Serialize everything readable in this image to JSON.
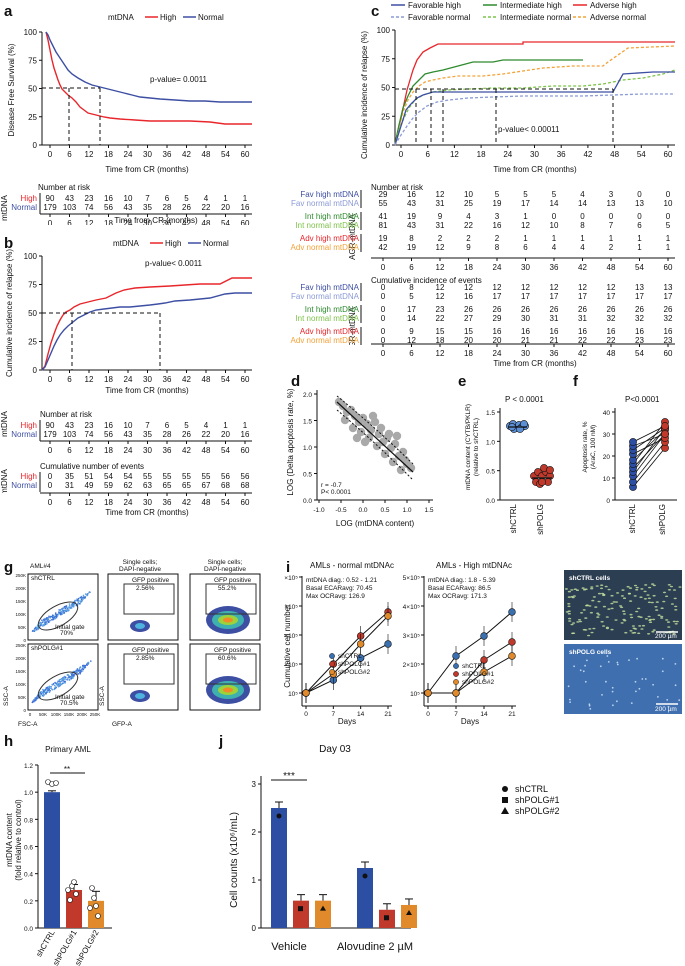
{
  "panels": {
    "a": {
      "label": "a",
      "legend_title": "mtDNA",
      "series": [
        "High",
        "Normal"
      ],
      "colors": {
        "High": "#e8262b",
        "Normal": "#3d4fa3"
      },
      "ylabel": "Disease Free Survival (%)",
      "xlabel": "Time from CR (months)",
      "pvalue": "p-value= 0.0011",
      "yticks": [
        "0",
        "25",
        "50",
        "75",
        "100"
      ],
      "xticks": [
        "0",
        "6",
        "12",
        "18",
        "24",
        "30",
        "36",
        "42",
        "48",
        "54",
        "60"
      ],
      "risk_title": "Number at risk",
      "risk_group": "mtDNA",
      "risk_rows": [
        {
          "name": "High",
          "values": [
            "90",
            "43",
            "23",
            "16",
            "10",
            "7",
            "6",
            "5",
            "4",
            "1",
            "1"
          ]
        },
        {
          "name": "Normal",
          "values": [
            "179",
            "103",
            "74",
            "56",
            "43",
            "35",
            "28",
            "26",
            "22",
            "20",
            "16"
          ]
        }
      ]
    },
    "b": {
      "label": "b",
      "legend_title": "mtDNA",
      "series": [
        "High",
        "Normal"
      ],
      "ylabel": "Cumulative incidence of relapse (%)",
      "xlabel": "Time from CR (months)",
      "pvalue": "p-value< 0.0011",
      "yticks": [
        "0",
        "25",
        "50",
        "75",
        "100"
      ],
      "xticks": [
        "0",
        "6",
        "12",
        "18",
        "24",
        "30",
        "36",
        "42",
        "48",
        "54",
        "60"
      ],
      "risk_title": "Number at risk",
      "risk_group": "mtDNA",
      "risk_rows": [
        {
          "name": "High",
          "values": [
            "90",
            "43",
            "23",
            "16",
            "10",
            "7",
            "6",
            "5",
            "4",
            "1",
            "1"
          ]
        },
        {
          "name": "Normal",
          "values": [
            "179",
            "103",
            "74",
            "56",
            "43",
            "35",
            "28",
            "26",
            "22",
            "20",
            "16"
          ]
        }
      ],
      "events_title": "Cumulative number of events",
      "event_rows": [
        {
          "name": "High",
          "values": [
            "0",
            "35",
            "51",
            "54",
            "54",
            "55",
            "55",
            "55",
            "55",
            "56",
            "56"
          ]
        },
        {
          "name": "Normal",
          "values": [
            "0",
            "31",
            "49",
            "59",
            "62",
            "63",
            "65",
            "65",
            "67",
            "68",
            "68"
          ]
        }
      ]
    },
    "c": {
      "label": "c",
      "legend": [
        {
          "name": "Favorable high",
          "color": "#3d4fa3",
          "dash": false
        },
        {
          "name": "Intermediate high",
          "color": "#2e8b2e",
          "dash": false
        },
        {
          "name": "Adverse high",
          "color": "#e8262b",
          "dash": false
        },
        {
          "name": "Favorable normal",
          "color": "#8c9bd6",
          "dash": true
        },
        {
          "name": "Intermediate normal",
          "color": "#7ec34a",
          "dash": true
        },
        {
          "name": "Adverse normal",
          "color": "#f3a33a",
          "dash": true
        }
      ],
      "ylabel": "Cumulative incidence of relapse (%)",
      "xlabel": "Time from CR (months)",
      "pvalue": "p-value< 0.00011",
      "yticks": [
        "0",
        "25",
        "50",
        "75",
        "100"
      ],
      "xticks": [
        "0",
        "6",
        "12",
        "18",
        "24",
        "30",
        "36",
        "42",
        "48",
        "54",
        "60"
      ],
      "risk_title": "Number at risk",
      "risk_group": "AGR-mtDNA",
      "risk_rows": [
        {
          "name": "Fav high mtDNA",
          "color": "#3d4fa3",
          "values": [
            "29",
            "16",
            "12",
            "10",
            "5",
            "5",
            "5",
            "4",
            "3",
            "0",
            "0"
          ]
        },
        {
          "name": "Fav normal mtDNA",
          "color": "#8c9bd6",
          "values": [
            "55",
            "43",
            "31",
            "25",
            "19",
            "17",
            "14",
            "14",
            "13",
            "13",
            "10"
          ]
        },
        {
          "name": "Int high mtDNA",
          "color": "#2e8b2e",
          "values": [
            "41",
            "19",
            "9",
            "4",
            "3",
            "1",
            "0",
            "0",
            "0",
            "0",
            "0"
          ]
        },
        {
          "name": "Int normal mtDNA",
          "color": "#7ec34a",
          "values": [
            "81",
            "43",
            "31",
            "22",
            "16",
            "12",
            "10",
            "8",
            "7",
            "6",
            "5"
          ]
        },
        {
          "name": "Adv high mtDNA",
          "color": "#e8262b",
          "values": [
            "19",
            "8",
            "2",
            "2",
            "2",
            "1",
            "1",
            "1",
            "1",
            "1",
            "1"
          ]
        },
        {
          "name": "Adv normal mtDNA",
          "color": "#f3a33a",
          "values": [
            "42",
            "19",
            "12",
            "9",
            "8",
            "6",
            "4",
            "4",
            "2",
            "1",
            "1"
          ]
        }
      ],
      "events_title": "Cumulative incidence of events",
      "event_rows": [
        {
          "name": "Fav high mtDNA",
          "color": "#3d4fa3",
          "values": [
            "0",
            "8",
            "12",
            "12",
            "12",
            "12",
            "12",
            "12",
            "12",
            "13",
            "13"
          ]
        },
        {
          "name": "Fav normal mtDNA",
          "color": "#8c9bd6",
          "values": [
            "0",
            "5",
            "12",
            "16",
            "17",
            "17",
            "17",
            "17",
            "17",
            "17",
            "17"
          ]
        },
        {
          "name": "Int high mtDNA",
          "color": "#2e8b2e",
          "values": [
            "0",
            "17",
            "23",
            "26",
            "26",
            "26",
            "26",
            "26",
            "26",
            "26",
            "26"
          ]
        },
        {
          "name": "Int normal mtDNA",
          "color": "#7ec34a",
          "values": [
            "0",
            "14",
            "22",
            "27",
            "29",
            "30",
            "31",
            "31",
            "32",
            "32",
            "32"
          ]
        },
        {
          "name": "Adv high mtDNA",
          "color": "#e8262b",
          "values": [
            "0",
            "9",
            "15",
            "15",
            "16",
            "16",
            "16",
            "16",
            "16",
            "16",
            "16"
          ]
        },
        {
          "name": "Adv normal mtDNA",
          "color": "#f3a33a",
          "values": [
            "0",
            "12",
            "18",
            "20",
            "20",
            "21",
            "21",
            "22",
            "22",
            "23",
            "23"
          ]
        }
      ],
      "xtable": [
        "0",
        "6",
        "12",
        "18",
        "24",
        "30",
        "36",
        "42",
        "48",
        "54",
        "60"
      ]
    },
    "d": {
      "label": "d",
      "ylabel": "LOG (Delta apoptosis rate, %)",
      "xlabel": "LOG (mtDNA content)",
      "xticks": [
        "-1.0",
        "-0.5",
        "0.0",
        "0.5",
        "1.0",
        "1.5"
      ],
      "yticks": [
        "0.0",
        "0.5",
        "1.0",
        "1.5",
        "2.0"
      ],
      "r": "r = -0.7",
      "p": "P< 0.0001"
    },
    "e": {
      "label": "e",
      "pvalue": "P < 0.0001",
      "ylabel1": "mtDNA content (CYTB/PKLR)",
      "ylabel2": "(relative to shCTRL)",
      "yticks": [
        "0.0",
        "0.5",
        "1.0",
        "1.5"
      ],
      "groups": [
        "shCTRL",
        "shPOLG"
      ]
    },
    "f": {
      "label": "f",
      "pvalue": "P<0.0001",
      "ylabel1": "Apoptosis rate, %",
      "ylabel2": "(AraC, 100 nM)",
      "yticks": [
        "0",
        "10",
        "20",
        "30",
        "40"
      ],
      "groups": [
        "shCTRL",
        "shPOLG"
      ]
    },
    "g": {
      "label": "g",
      "sample": "AML#4",
      "col1": "Single cells;",
      "col1b": "DAPI-negative",
      "col2": "Single cells;",
      "col2b": "DAPI-negative",
      "row1": "shCTRL",
      "row2": "shPOLG#1",
      "gate": "Initial gate",
      "gate1": "70%",
      "gate2": "70.5%",
      "gfp": "GFP positive",
      "gfp_vals": [
        "2.56%",
        "55.2%",
        "2.85%",
        "60.6%"
      ],
      "axis_x1": "FSC-A",
      "axis_y1": "SSC-A",
      "axis_x2": "GFP-A",
      "fsc_ticks": [
        "0",
        "50K",
        "100K",
        "150K",
        "200K",
        "250K"
      ],
      "ssc_ticks": [
        "0",
        "50K",
        "100K",
        "150K",
        "200K",
        "250K"
      ]
    },
    "h": {
      "label": "h",
      "title": "Primary AML",
      "ylabel1": "mtDNA content",
      "ylabel2": "(fold relative to control)",
      "yticks": [
        "0.0",
        "0.2",
        "0.4",
        "0.6",
        "0.8",
        "1.0",
        "1.2"
      ],
      "groups": [
        "shCTRL",
        "shPOLG#1",
        "shPOLG#2"
      ],
      "sig": "**"
    },
    "i": {
      "label": "i",
      "title1": "AMLs - normal mtDNAc",
      "title2": "AMLs - High mtDNAc",
      "info1": [
        "mtDNA diag.: 0.52 - 1.21",
        "Basal  ECARavg: 70.45",
        "Max OCRavg: 126.9"
      ],
      "info2": [
        "mtDNA diag.: 1.8 - 5.39",
        "Basal  ECARavg: 86.5",
        "Max OCRavg: 171.3"
      ],
      "ylabel": "Cumulative cell number",
      "xlabel": "Days",
      "xticks": [
        "0",
        "7",
        "14",
        "21"
      ],
      "yticks": [
        "10⁵",
        "2×10⁵",
        "3×10⁵",
        "4×10⁵",
        "5×10⁵"
      ],
      "series": [
        "shCTRL",
        "shPOLG#1",
        "shPOLG#2"
      ],
      "img1": "shCTRL cells",
      "img2": "shPOLG cells",
      "scale": "200 µm"
    },
    "j": {
      "label": "j",
      "title": "Day 03",
      "ylabel": "Cell counts (x10⁶/mL)",
      "yticks": [
        "0",
        "1",
        "2",
        "3"
      ],
      "groups": [
        "Vehicle",
        "Alovudine 2 µM"
      ],
      "legend": [
        "shCTRL",
        "shPOLG#1",
        "shPOLG#2"
      ],
      "sig": "***"
    }
  }
}
